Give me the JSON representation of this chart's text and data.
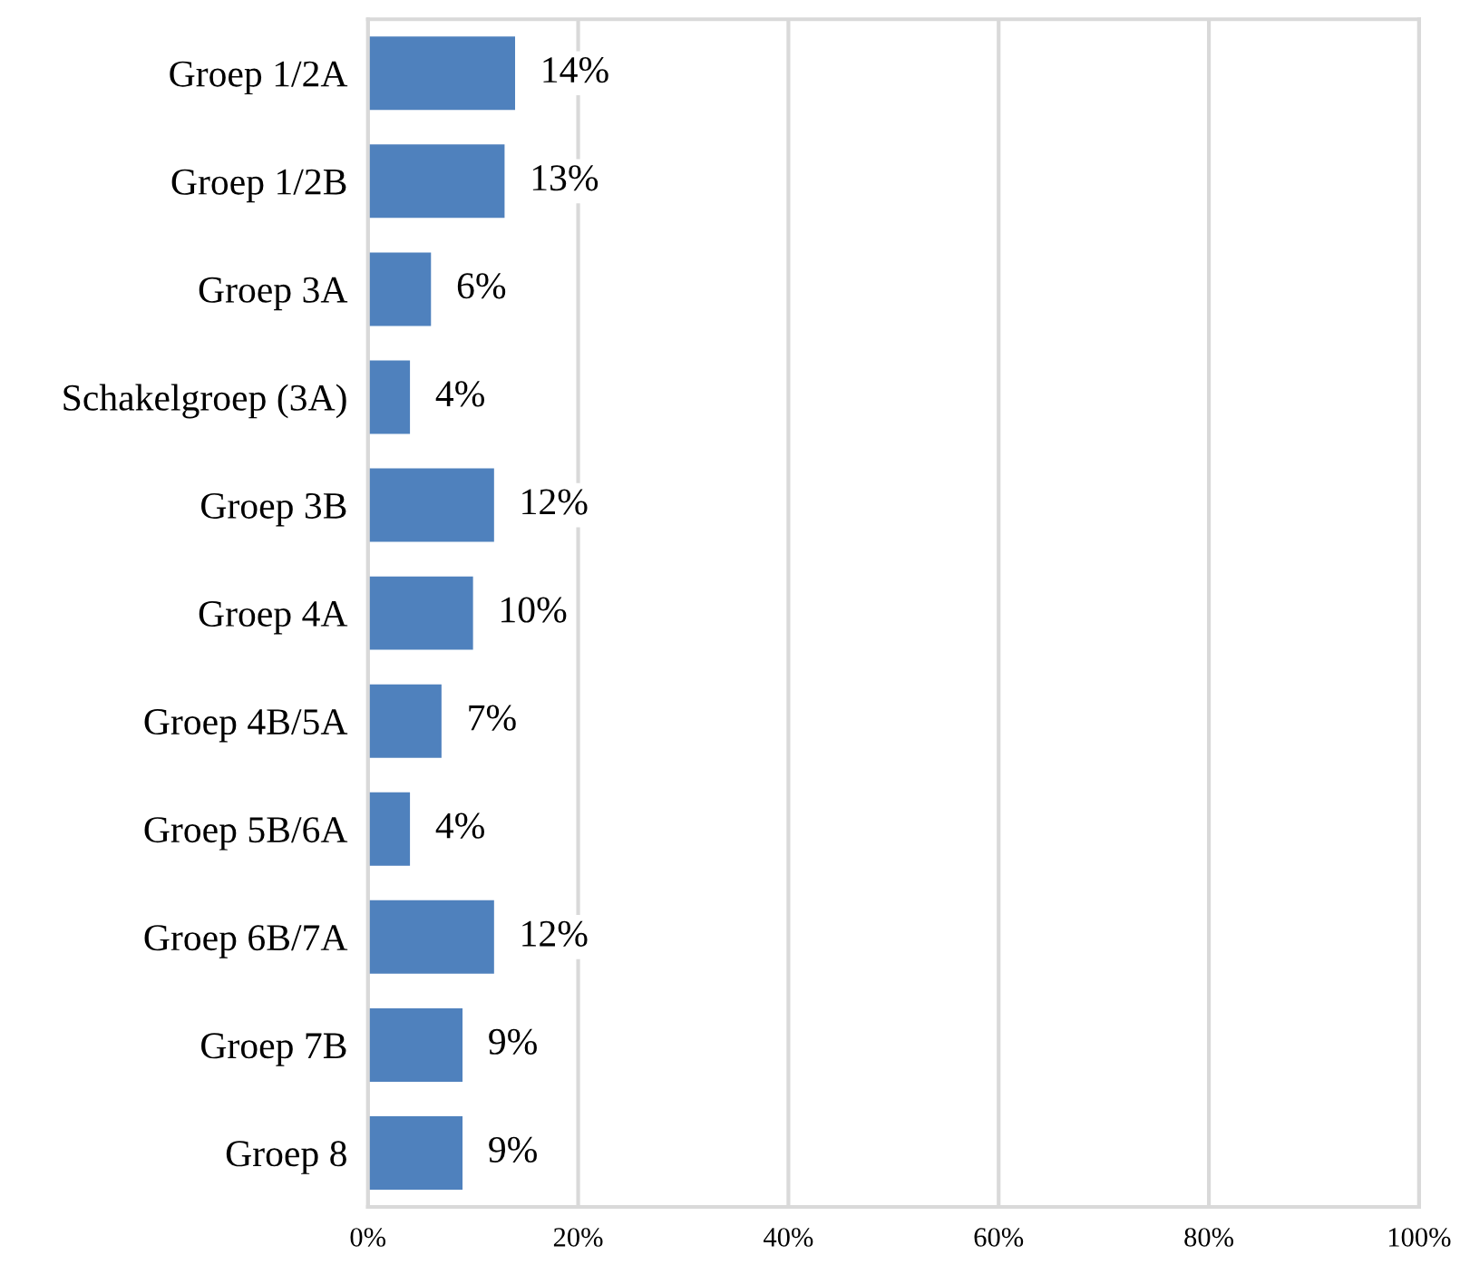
{
  "chart_data": {
    "type": "bar",
    "orientation": "horizontal",
    "categories": [
      "Groep 1/2A",
      "Groep 1/2B",
      "Groep 3A",
      "Schakelgroep (3A)",
      "Groep 3B",
      "Groep 4A",
      "Groep 4B/5A",
      "Groep 5B/6A",
      "Groep 6B/7A",
      "Groep 7B",
      "Groep 8"
    ],
    "values": [
      14,
      13,
      6,
      4,
      12,
      10,
      7,
      4,
      12,
      9,
      9
    ],
    "value_labels": [
      "14%",
      "13%",
      "6%",
      "4%",
      "12%",
      "10%",
      "7%",
      "4%",
      "12%",
      "9%",
      "9%"
    ],
    "color": "#4f81bd",
    "xlim": [
      0,
      100
    ],
    "xticks": [
      {
        "value": 0,
        "label": "0%"
      },
      {
        "value": 20,
        "label": "20%"
      },
      {
        "value": 40,
        "label": "40%"
      },
      {
        "value": 60,
        "label": "60%"
      },
      {
        "value": 80,
        "label": "80%"
      },
      {
        "value": 100,
        "label": "100%"
      }
    ],
    "grid": "x"
  }
}
